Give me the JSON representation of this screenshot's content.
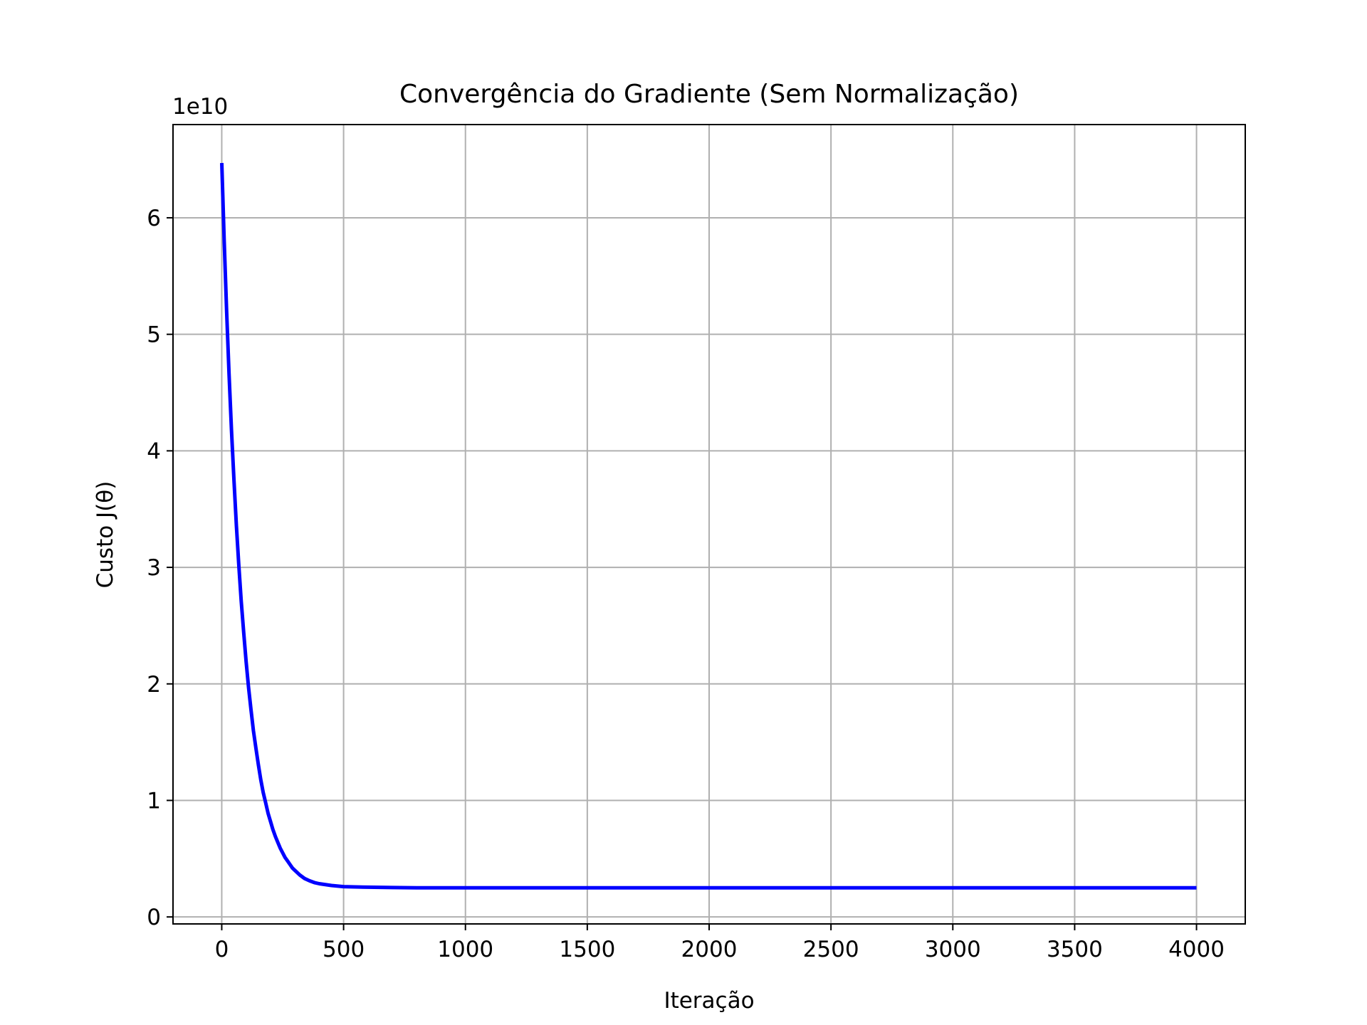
{
  "chart_data": {
    "type": "line",
    "title": "Convergência do Gradiente (Sem Normalização)",
    "xlabel": "Iteração",
    "ylabel": "Custo J(θ)",
    "y_offset_label": "1e10",
    "y_multiplier": 10000000000,
    "xlim": [
      -200,
      4200
    ],
    "ylim": [
      -0.06,
      6.8
    ],
    "x_ticks": [
      0,
      500,
      1000,
      1500,
      2000,
      2500,
      3000,
      3500,
      4000
    ],
    "y_ticks": [
      0,
      1,
      2,
      3,
      4,
      5,
      6
    ],
    "x_tick_labels": [
      "0",
      "500",
      "1000",
      "1500",
      "2000",
      "2500",
      "3000",
      "3500",
      "4000"
    ],
    "y_tick_labels": [
      "0",
      "1",
      "2",
      "3",
      "4",
      "5",
      "6"
    ],
    "grid": true,
    "series": [
      {
        "color": "#0000ff",
        "x": [
          0,
          10,
          20,
          30,
          40,
          50,
          60,
          70,
          80,
          90,
          100,
          110,
          120,
          130,
          140,
          150,
          160,
          170,
          180,
          190,
          200,
          210,
          220,
          230,
          240,
          250,
          260,
          270,
          280,
          290,
          300,
          320,
          340,
          360,
          380,
          400,
          450,
          500,
          600,
          700,
          800,
          1000,
          1500,
          2000,
          2500,
          3000,
          3500,
          4000
        ],
        "y": [
          6.47,
          5.8,
          5.2,
          4.66,
          4.18,
          3.75,
          3.36,
          3.02,
          2.71,
          2.44,
          2.19,
          1.97,
          1.78,
          1.6,
          1.45,
          1.31,
          1.18,
          1.07,
          0.98,
          0.89,
          0.82,
          0.75,
          0.69,
          0.64,
          0.59,
          0.55,
          0.51,
          0.48,
          0.45,
          0.42,
          0.4,
          0.36,
          0.33,
          0.31,
          0.295,
          0.285,
          0.27,
          0.26,
          0.255,
          0.252,
          0.25,
          0.25,
          0.25,
          0.25,
          0.25,
          0.25,
          0.25,
          0.25
        ]
      }
    ]
  }
}
